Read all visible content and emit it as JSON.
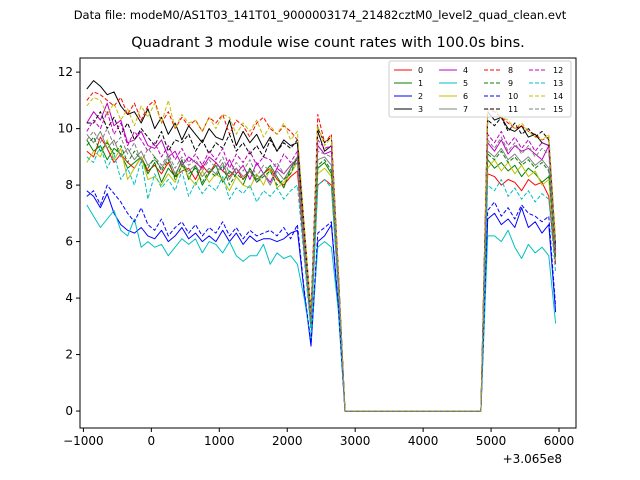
{
  "chart_data": {
    "type": "line",
    "suptitle": "Data file: modeM0/AS1T03_141T01_9000003174_21482cztM0_level2_quad_clean.evt",
    "title": "Quadrant 3 module wise count rates with 100.0s bins.",
    "xlabel": "",
    "ylabel": "",
    "x_offset_label": "+3.065e8",
    "xlim": [
      -1050,
      6250
    ],
    "ylim": [
      -0.6,
      12.5
    ],
    "xticks": [
      -1000,
      0,
      1000,
      2000,
      3000,
      4000,
      5000,
      6000
    ],
    "yticks": [
      0,
      2,
      4,
      6,
      8,
      10,
      12
    ],
    "x": [
      -950,
      -850,
      -750,
      -650,
      -550,
      -450,
      -350,
      -250,
      -150,
      -50,
      50,
      150,
      250,
      350,
      450,
      550,
      650,
      750,
      850,
      950,
      1050,
      1150,
      1250,
      1350,
      1450,
      1550,
      1650,
      1750,
      1850,
      1950,
      2050,
      2150,
      2250,
      2350,
      2450,
      2550,
      2650,
      2750,
      2850,
      2950,
      3050,
      3150,
      3250,
      3350,
      3450,
      3550,
      3650,
      3750,
      3850,
      3950,
      4050,
      4150,
      4250,
      4350,
      4450,
      4550,
      4650,
      4750,
      4850,
      4950,
      5050,
      5150,
      5250,
      5350,
      5450,
      5550,
      5650,
      5750,
      5850,
      5950
    ],
    "legend_loc": "upper right",
    "series": [
      {
        "name": "0",
        "color": "#ff0000",
        "dash": "solid",
        "values": [
          9.2,
          9.0,
          9.7,
          9.3,
          8.8,
          9.1,
          8.8,
          8.6,
          9.0,
          8.5,
          8.7,
          8.4,
          8.8,
          8.3,
          8.5,
          8.6,
          8.2,
          8.7,
          8.4,
          8.8,
          8.5,
          8.3,
          8.6,
          8.2,
          8.5,
          8.1,
          8.4,
          8.6,
          8.2,
          8.0,
          8.3,
          8.5,
          5.6,
          3.0,
          8.0,
          8.2,
          8.0,
          4.4,
          0,
          0,
          0,
          0,
          0,
          0,
          0,
          0,
          0,
          0,
          0,
          0,
          0,
          0,
          0,
          0,
          0,
          0,
          0,
          0,
          0,
          8.4,
          8.3,
          8.0,
          8.2,
          8.1,
          7.8,
          8.2,
          8.0,
          8.1,
          7.6,
          5.2
        ]
      },
      {
        "name": "1",
        "color": "#008000",
        "dash": "solid",
        "values": [
          9.6,
          9.2,
          9.4,
          8.9,
          9.3,
          9.1,
          8.6,
          8.8,
          9.0,
          8.4,
          8.8,
          8.1,
          8.6,
          8.3,
          8.9,
          8.2,
          8.7,
          8.0,
          8.4,
          8.7,
          8.1,
          8.5,
          8.3,
          8.0,
          8.6,
          8.2,
          8.4,
          8.7,
          8.3,
          7.9,
          8.6,
          9.0,
          6.0,
          3.1,
          8.6,
          8.8,
          8.4,
          4.6,
          0,
          0,
          0,
          0,
          0,
          0,
          0,
          0,
          0,
          0,
          0,
          0,
          0,
          0,
          0,
          0,
          0,
          0,
          0,
          0,
          0,
          8.9,
          8.6,
          8.8,
          8.5,
          8.7,
          8.3,
          8.6,
          8.4,
          8.1,
          8.3,
          5.4
        ]
      },
      {
        "name": "2",
        "color": "#0000ff",
        "dash": "solid",
        "values": [
          7.8,
          7.6,
          7.2,
          7.7,
          7.0,
          6.6,
          6.4,
          6.3,
          6.5,
          6.2,
          6.1,
          6.4,
          6.0,
          6.2,
          6.5,
          6.1,
          6.3,
          6.0,
          6.2,
          6.0,
          6.4,
          6.0,
          6.3,
          5.9,
          6.2,
          6.0,
          6.1,
          6.1,
          6.0,
          6.1,
          6.3,
          6.4,
          4.2,
          2.3,
          6.0,
          6.2,
          6.6,
          3.7,
          0,
          0,
          0,
          0,
          0,
          0,
          0,
          0,
          0,
          0,
          0,
          0,
          0,
          0,
          0,
          0,
          0,
          0,
          0,
          0,
          0,
          6.8,
          7.0,
          6.6,
          6.8,
          6.5,
          7.2,
          6.5,
          6.7,
          6.3,
          6.6,
          3.5
        ]
      },
      {
        "name": "3",
        "color": "#000000",
        "dash": "solid",
        "values": [
          11.4,
          11.7,
          11.5,
          11.2,
          11.3,
          10.8,
          10.5,
          10.6,
          10.2,
          10.7,
          10.0,
          10.4,
          9.8,
          10.2,
          9.6,
          10.1,
          9.8,
          9.5,
          10.0,
          9.7,
          9.6,
          10.3,
          9.4,
          9.9,
          9.5,
          9.8,
          9.3,
          9.7,
          9.2,
          9.6,
          9.4,
          9.5,
          6.4,
          3.4,
          9.9,
          9.2,
          9.4,
          5.0,
          0,
          0,
          0,
          0,
          0,
          0,
          0,
          0,
          0,
          0,
          0,
          0,
          0,
          0,
          0,
          0,
          0,
          0,
          0,
          0,
          0,
          10.6,
          10.3,
          10.4,
          10.0,
          9.9,
          10.1,
          9.7,
          9.8,
          9.5,
          9.4,
          5.8
        ]
      },
      {
        "name": "4",
        "color": "#c000c0",
        "dash": "solid",
        "values": [
          10.2,
          10.6,
          10.3,
          10.9,
          10.1,
          10.3,
          9.5,
          9.6,
          9.9,
          9.4,
          9.3,
          9.6,
          9.0,
          9.2,
          8.7,
          9.0,
          8.8,
          8.6,
          9.0,
          8.8,
          8.5,
          8.9,
          8.4,
          8.7,
          8.2,
          8.8,
          8.4,
          8.1,
          8.6,
          8.4,
          8.7,
          8.9,
          5.8,
          3.2,
          9.4,
          9.1,
          9.2,
          4.8,
          0,
          0,
          0,
          0,
          0,
          0,
          0,
          0,
          0,
          0,
          0,
          0,
          0,
          0,
          0,
          0,
          0,
          0,
          0,
          0,
          0,
          9.5,
          9.2,
          9.6,
          9.1,
          9.4,
          9.2,
          9.3,
          9.1,
          8.9,
          9.4,
          5.6
        ]
      },
      {
        "name": "5",
        "color": "#00c0c0",
        "dash": "solid",
        "values": [
          7.3,
          6.9,
          6.5,
          6.8,
          7.1,
          6.4,
          6.2,
          6.8,
          5.8,
          6.0,
          5.8,
          5.9,
          5.5,
          5.8,
          6.1,
          5.9,
          6.1,
          5.6,
          6.0,
          5.9,
          5.6,
          6.0,
          5.5,
          5.3,
          5.5,
          5.5,
          5.9,
          5.2,
          5.6,
          5.4,
          5.5,
          5.2,
          4.0,
          2.5,
          5.8,
          6.0,
          5.8,
          3.6,
          0,
          0,
          0,
          0,
          0,
          0,
          0,
          0,
          0,
          0,
          0,
          0,
          0,
          0,
          0,
          0,
          0,
          0,
          0,
          0,
          0,
          6.2,
          6.2,
          6.0,
          6.4,
          5.8,
          5.4,
          5.9,
          5.6,
          5.8,
          5.5,
          3.1
        ]
      },
      {
        "name": "6",
        "color": "#c0c000",
        "dash": "solid",
        "values": [
          8.8,
          9.2,
          9.0,
          9.6,
          8.9,
          9.3,
          8.2,
          8.6,
          9.0,
          8.2,
          8.3,
          8.0,
          8.4,
          8.1,
          8.7,
          8.3,
          8.0,
          8.5,
          8.1,
          8.4,
          8.2,
          7.8,
          8.3,
          8.0,
          7.9,
          8.4,
          8.0,
          8.6,
          7.9,
          8.1,
          8.4,
          8.8,
          5.9,
          3.1,
          8.4,
          8.6,
          8.3,
          4.6,
          0,
          0,
          0,
          0,
          0,
          0,
          0,
          0,
          0,
          0,
          0,
          0,
          0,
          0,
          0,
          0,
          0,
          0,
          0,
          0,
          0,
          8.6,
          8.9,
          8.5,
          8.8,
          8.4,
          8.7,
          8.3,
          8.5,
          8.0,
          8.2,
          5.4
        ]
      },
      {
        "name": "7",
        "color": "#808080",
        "dash": "solid",
        "values": [
          9.8,
          9.5,
          9.9,
          9.3,
          9.6,
          9.0,
          9.3,
          8.9,
          9.2,
          8.7,
          8.9,
          8.6,
          9.0,
          8.4,
          8.8,
          8.5,
          8.7,
          8.3,
          8.6,
          8.4,
          8.8,
          8.2,
          8.6,
          8.3,
          8.5,
          8.1,
          8.4,
          8.0,
          8.5,
          8.2,
          8.6,
          8.8,
          5.9,
          3.2,
          8.9,
          9.0,
          8.7,
          4.7,
          0,
          0,
          0,
          0,
          0,
          0,
          0,
          0,
          0,
          0,
          0,
          0,
          0,
          0,
          0,
          0,
          0,
          0,
          0,
          0,
          0,
          9.2,
          9.0,
          9.3,
          8.9,
          9.1,
          8.8,
          9.0,
          8.7,
          8.9,
          8.6,
          5.5
        ]
      },
      {
        "name": "8",
        "color": "#ff0000",
        "dash": "dashed",
        "values": [
          11.0,
          11.3,
          11.2,
          11.0,
          10.8,
          11.1,
          10.5,
          10.9,
          10.3,
          10.8,
          11.0,
          10.2,
          10.6,
          10.0,
          10.4,
          10.1,
          10.3,
          9.9,
          10.4,
          10.2,
          10.5,
          9.8,
          10.3,
          10.1,
          9.7,
          10.2,
          10.4,
          10.0,
          9.8,
          10.1,
          9.9,
          9.6,
          6.6,
          3.5,
          10.5,
          9.5,
          9.8,
          5.1,
          0,
          0,
          0,
          0,
          0,
          0,
          0,
          0,
          0,
          0,
          0,
          0,
          0,
          0,
          0,
          0,
          0,
          0,
          0,
          0,
          0,
          10.7,
          10.6,
          10.4,
          10.2,
          10.0,
          10.1,
          9.9,
          9.8,
          9.6,
          9.7,
          6.0
        ]
      },
      {
        "name": "9",
        "color": "#008000",
        "dash": "dashed",
        "values": [
          9.4,
          9.7,
          9.2,
          9.5,
          9.1,
          9.4,
          8.8,
          9.2,
          8.9,
          8.6,
          9.0,
          8.5,
          8.9,
          8.2,
          8.7,
          8.4,
          8.6,
          8.1,
          8.5,
          8.3,
          8.7,
          8.0,
          8.4,
          8.2,
          8.6,
          8.1,
          8.3,
          8.5,
          8.0,
          8.2,
          8.4,
          9.0,
          6.0,
          3.1,
          8.7,
          8.9,
          8.5,
          4.6,
          0,
          0,
          0,
          0,
          0,
          0,
          0,
          0,
          0,
          0,
          0,
          0,
          0,
          0,
          0,
          0,
          0,
          0,
          0,
          0,
          0,
          9.1,
          8.9,
          9.2,
          8.8,
          9.0,
          8.7,
          8.9,
          8.6,
          8.8,
          8.5,
          5.4
        ]
      },
      {
        "name": "10",
        "color": "#0000ff",
        "dash": "dashed",
        "values": [
          7.6,
          7.8,
          7.3,
          8.0,
          7.7,
          7.4,
          7.0,
          6.7,
          7.2,
          6.6,
          6.4,
          6.8,
          6.2,
          6.5,
          6.7,
          6.3,
          6.6,
          6.2,
          6.5,
          6.3,
          6.7,
          6.2,
          6.5,
          6.1,
          6.4,
          6.2,
          6.3,
          6.4,
          6.2,
          6.5,
          6.1,
          6.6,
          4.3,
          2.4,
          6.3,
          6.5,
          6.7,
          3.8,
          0,
          0,
          0,
          0,
          0,
          0,
          0,
          0,
          0,
          0,
          0,
          0,
          0,
          0,
          0,
          0,
          0,
          0,
          0,
          0,
          0,
          7.1,
          7.4,
          6.9,
          7.2,
          6.8,
          7.3,
          7.0,
          6.9,
          6.7,
          6.9,
          3.7
        ]
      },
      {
        "name": "11",
        "color": "#000000",
        "dash": "dashed",
        "values": [
          10.2,
          10.2,
          10.6,
          10.0,
          10.4,
          9.8,
          10.2,
          9.6,
          10.0,
          9.7,
          9.4,
          9.9,
          9.2,
          9.6,
          9.5,
          9.8,
          9.2,
          9.6,
          9.1,
          9.5,
          9.3,
          9.8,
          9.2,
          9.5,
          9.1,
          9.4,
          9.0,
          9.6,
          9.2,
          9.5,
          9.3,
          9.6,
          6.4,
          3.4,
          10.0,
          9.5,
          9.7,
          5.0,
          0,
          0,
          0,
          0,
          0,
          0,
          0,
          0,
          0,
          0,
          0,
          0,
          0,
          0,
          0,
          0,
          0,
          0,
          0,
          0,
          0,
          10.3,
          10.1,
          10.4,
          9.9,
          10.2,
          9.8,
          10.0,
          9.7,
          9.9,
          9.6,
          5.9
        ]
      },
      {
        "name": "12",
        "color": "#c000c0",
        "dash": "dashed",
        "values": [
          9.9,
          10.3,
          10.0,
          10.6,
          9.8,
          10.2,
          9.4,
          9.9,
          9.6,
          9.2,
          9.5,
          9.0,
          9.4,
          8.9,
          9.3,
          8.8,
          9.1,
          8.7,
          9.2,
          8.9,
          9.3,
          8.6,
          9.1,
          8.8,
          9.2,
          8.7,
          9.0,
          8.9,
          8.6,
          9.1,
          8.8,
          9.2,
          6.1,
          3.3,
          9.6,
          9.3,
          9.4,
          4.9,
          0,
          0,
          0,
          0,
          0,
          0,
          0,
          0,
          0,
          0,
          0,
          0,
          0,
          0,
          0,
          0,
          0,
          0,
          0,
          0,
          0,
          9.8,
          9.5,
          9.9,
          9.4,
          9.7,
          9.3,
          9.6,
          9.2,
          9.5,
          9.4,
          5.7
        ]
      },
      {
        "name": "13",
        "color": "#00c0c0",
        "dash": "dashed",
        "values": [
          9.0,
          8.8,
          9.4,
          8.6,
          9.1,
          8.2,
          8.6,
          8.0,
          8.9,
          7.5,
          8.4,
          7.9,
          8.2,
          7.8,
          8.5,
          7.6,
          8.1,
          7.7,
          8.0,
          7.8,
          8.3,
          7.5,
          7.9,
          7.7,
          8.0,
          7.4,
          7.8,
          7.6,
          7.9,
          7.5,
          7.8,
          8.0,
          5.4,
          2.8,
          8.0,
          8.2,
          7.9,
          4.4,
          0,
          0,
          0,
          0,
          0,
          0,
          0,
          0,
          0,
          0,
          0,
          0,
          0,
          0,
          0,
          0,
          0,
          0,
          0,
          0,
          0,
          8.0,
          7.8,
          8.2,
          7.6,
          7.9,
          7.5,
          7.8,
          7.4,
          7.7,
          7.5,
          4.9
        ]
      },
      {
        "name": "14",
        "color": "#c0c000",
        "dash": "dashed",
        "values": [
          10.8,
          11.1,
          11.0,
          10.5,
          10.9,
          10.3,
          10.7,
          10.1,
          10.8,
          10.4,
          10.9,
          10.2,
          11.0,
          10.0,
          10.5,
          10.2,
          10.3,
          9.9,
          10.4,
          10.0,
          10.5,
          10.4,
          9.8,
          10.2,
          9.9,
          10.3,
          9.7,
          10.1,
          9.8,
          10.2,
          9.6,
          9.9,
          6.6,
          3.5,
          10.1,
          9.4,
          9.7,
          5.1,
          0,
          0,
          0,
          0,
          0,
          0,
          0,
          0,
          0,
          0,
          0,
          0,
          0,
          0,
          0,
          0,
          0,
          0,
          0,
          0,
          0,
          10.6,
          10.7,
          10.4,
          10.3,
          10.0,
          10.2,
          9.9,
          9.7,
          9.6,
          9.8,
          6.0
        ]
      },
      {
        "name": "15",
        "color": "#808080",
        "dash": "dashed",
        "values": [
          9.6,
          9.9,
          9.5,
          10.0,
          9.4,
          9.7,
          9.1,
          9.5,
          8.8,
          9.3,
          9.0,
          8.7,
          9.1,
          8.6,
          9.0,
          8.7,
          8.9,
          8.5,
          8.9,
          8.6,
          9.0,
          8.4,
          8.8,
          8.5,
          8.9,
          8.3,
          8.7,
          8.5,
          8.8,
          8.4,
          8.7,
          9.0,
          6.0,
          3.2,
          9.2,
          9.1,
          9.0,
          4.8,
          0,
          0,
          0,
          0,
          0,
          0,
          0,
          0,
          0,
          0,
          0,
          0,
          0,
          0,
          0,
          0,
          0,
          0,
          0,
          0,
          0,
          9.6,
          9.3,
          9.7,
          9.2,
          9.5,
          9.1,
          9.4,
          9.0,
          9.3,
          9.1,
          5.6
        ]
      }
    ]
  }
}
